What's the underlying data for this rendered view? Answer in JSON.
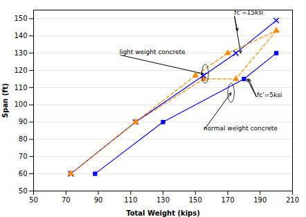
{
  "chart_data": {
    "type": "line",
    "xlabel": "Total Weight (kips)",
    "ylabel": "Span (ft)",
    "xlim": [
      50,
      210
    ],
    "ylim": [
      50,
      155
    ],
    "xticks": [
      50,
      70,
      90,
      110,
      130,
      150,
      170,
      190,
      210
    ],
    "yticks": [
      50,
      60,
      70,
      80,
      90,
      100,
      110,
      120,
      130,
      140,
      150
    ],
    "grid": "y",
    "series": [
      {
        "color": "#0000FF",
        "line_style": "solid",
        "marker": "square",
        "x": [
          88,
          130,
          180,
          200
        ],
        "values": [
          60,
          90,
          115,
          130
        ]
      },
      {
        "color": "#FF8C00",
        "line_style": "dashed",
        "marker": "triangle",
        "x": [
          73,
          113,
          155,
          175,
          200
        ],
        "values": [
          60,
          90,
          115,
          115,
          143
        ]
      },
      {
        "color": "#0000FF",
        "line_style": "solid",
        "marker": "x",
        "x": [
          73,
          113,
          155,
          175,
          200
        ],
        "values": [
          60,
          90,
          117,
          130,
          149
        ]
      },
      {
        "color": "#FF8C00",
        "line_style": "dashed",
        "marker": "triangle",
        "x": [
          73,
          113,
          150,
          170,
          200
        ],
        "values": [
          60,
          90,
          117,
          130,
          143
        ]
      }
    ],
    "annotations": [
      {
        "text": "light weight concrete",
        "xytext": [
          103,
          129
        ],
        "xy": [
          [
            155,
            118
          ]
        ]
      },
      {
        "text": "normal weight concrete",
        "xytext": [
          155,
          85
        ],
        "xy": [
          [
            172,
            107
          ]
        ]
      },
      {
        "text": "fc'=15ksi",
        "xytext": [
          174,
          152
        ],
        "xy": [
          [
            178,
            130
          ],
          [
            176,
            143
          ]
        ]
      },
      {
        "text": "fc'=5ksi",
        "xytext": [
          188,
          104
        ],
        "xy": [
          [
            183,
            115
          ],
          [
            182,
            115
          ]
        ]
      }
    ],
    "ellipses": [
      {
        "center": [
          156,
          118
        ],
        "width": 4,
        "height": 11
      },
      {
        "center": [
          172,
          107
        ],
        "width": 4,
        "height": 11
      }
    ]
  }
}
